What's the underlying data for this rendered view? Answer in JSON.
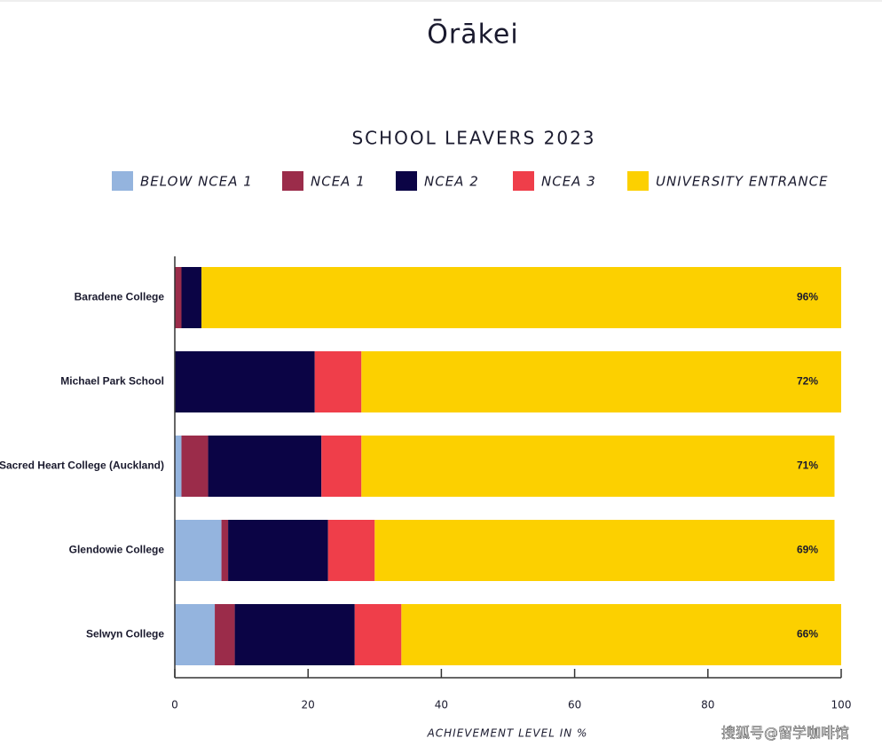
{
  "header": {
    "brand": "Ōrākei"
  },
  "watermark": "搜狐号@留学咖啡馆",
  "chart_data": {
    "type": "stacked_barh",
    "title": "SCHOOL LEAVERS 2023",
    "x_label": "ACHIEVEMENT LEVEL IN %",
    "categories": [
      "Baradene College",
      "Michael Park School",
      "Sacred Heart College (Auckland)",
      "Glendowie College",
      "Selwyn College"
    ],
    "series": [
      {
        "name": "BELOW NCEA 1",
        "color": "#94b4de",
        "values": [
          0,
          0,
          1,
          7,
          6
        ]
      },
      {
        "name": "NCEA 1",
        "color": "#9b2c4a",
        "values": [
          1,
          0,
          4,
          1,
          3
        ]
      },
      {
        "name": "NCEA 2",
        "color": "#0b0445",
        "values": [
          3,
          21,
          17,
          15,
          18
        ]
      },
      {
        "name": "NCEA 3",
        "color": "#ef3e4a",
        "values": [
          0,
          7,
          6,
          7,
          7
        ]
      },
      {
        "name": "UNIVERSITY ENTRANCE",
        "color": "#fcd000",
        "values": [
          96,
          72,
          71,
          69,
          66
        ],
        "value_labels": [
          "96%",
          "72%",
          "71%",
          "69%",
          "66%"
        ]
      }
    ],
    "xlim": [
      0,
      100
    ],
    "xticks": [
      0,
      20,
      40,
      60,
      80,
      100
    ]
  }
}
